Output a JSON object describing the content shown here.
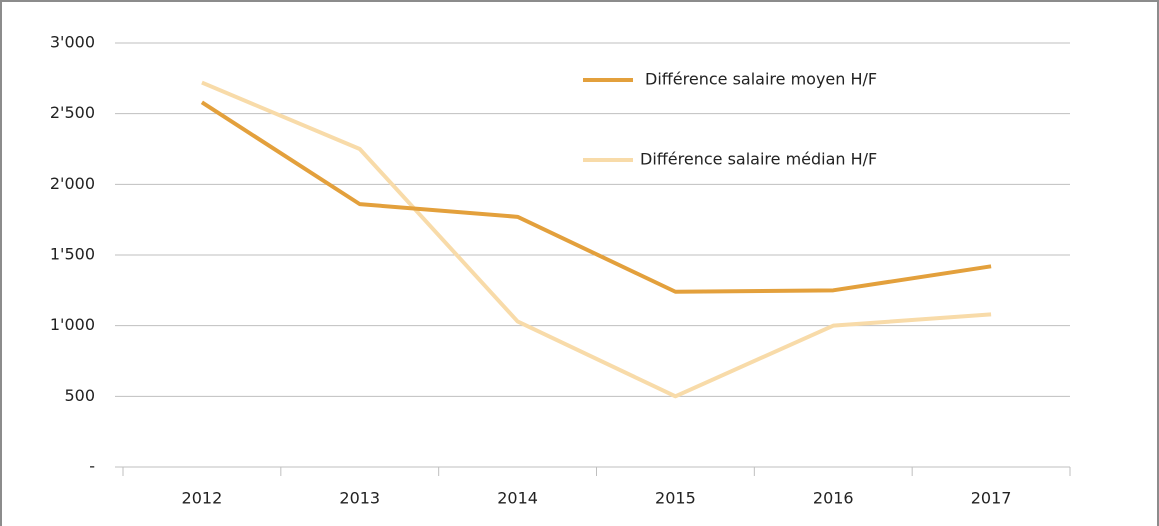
{
  "chart_data": {
    "type": "line",
    "categories": [
      "2012",
      "2013",
      "2014",
      "2015",
      "2016",
      "2017"
    ],
    "series": [
      {
        "name": "Différence salaire moyen H/F",
        "color": "#e3a03c",
        "values": [
          2580,
          1860,
          1770,
          1240,
          1250,
          1420
        ]
      },
      {
        "name": "Différence salaire médian H/F",
        "color": "#f8dba9",
        "values": [
          2720,
          2250,
          1030,
          500,
          1000,
          1080
        ]
      }
    ],
    "ylim": [
      0,
      3000
    ],
    "yticks": [
      {
        "value": 0,
        "label": "-"
      },
      500,
      {
        "value": 1000,
        "label": "1'000"
      },
      {
        "value": 1500,
        "label": "1'500"
      },
      {
        "value": 2000,
        "label": "2'000"
      },
      {
        "value": 2500,
        "label": "2'500"
      },
      {
        "value": 3000,
        "label": "3'000"
      }
    ],
    "grid": true
  }
}
